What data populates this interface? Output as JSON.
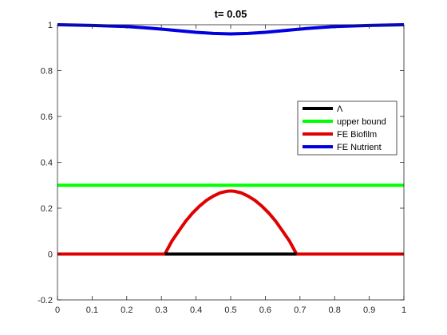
{
  "chart_data": {
    "type": "line",
    "title": "t=  0.05",
    "xlabel": "",
    "ylabel": "",
    "xlim": [
      0,
      1
    ],
    "ylim": [
      -0.2,
      1
    ],
    "xticks": [
      "0",
      "0.1",
      "0.2",
      "0.3",
      "0.4",
      "0.5",
      "0.6",
      "0.7",
      "0.8",
      "0.9",
      "1"
    ],
    "yticks": [
      "-0.2",
      "0",
      "0.2",
      "0.4",
      "0.6",
      "0.8",
      "1"
    ],
    "grid": false,
    "legend_position": "right",
    "series": [
      {
        "name": "Λ",
        "color": "#000000",
        "x": [
          0.31,
          0.69
        ],
        "y": [
          0,
          0
        ]
      },
      {
        "name": "upper bound",
        "color": "#00ff00",
        "x": [
          0,
          1
        ],
        "y": [
          0.3,
          0.3
        ]
      },
      {
        "name": "FE Biofilm",
        "color": "#e00000",
        "x": [
          0,
          0.31,
          0.33,
          0.35,
          0.37,
          0.39,
          0.41,
          0.43,
          0.45,
          0.47,
          0.49,
          0.5,
          0.51,
          0.53,
          0.55,
          0.57,
          0.59,
          0.61,
          0.63,
          0.65,
          0.67,
          0.69,
          1
        ],
        "y": [
          0,
          0,
          0.056,
          0.1,
          0.143,
          0.179,
          0.209,
          0.234,
          0.253,
          0.267,
          0.274,
          0.275,
          0.274,
          0.267,
          0.253,
          0.234,
          0.209,
          0.179,
          0.143,
          0.1,
          0.056,
          0,
          0
        ]
      },
      {
        "name": "FE Nutrient",
        "color": "#0000e0",
        "x": [
          0,
          0.1,
          0.2,
          0.25,
          0.3,
          0.35,
          0.4,
          0.45,
          0.5,
          0.55,
          0.6,
          0.65,
          0.7,
          0.75,
          0.8,
          0.9,
          1
        ],
        "y": [
          1.0,
          0.997,
          0.992,
          0.987,
          0.981,
          0.974,
          0.967,
          0.962,
          0.96,
          0.962,
          0.967,
          0.974,
          0.981,
          0.987,
          0.992,
          0.997,
          1.0
        ]
      }
    ]
  }
}
